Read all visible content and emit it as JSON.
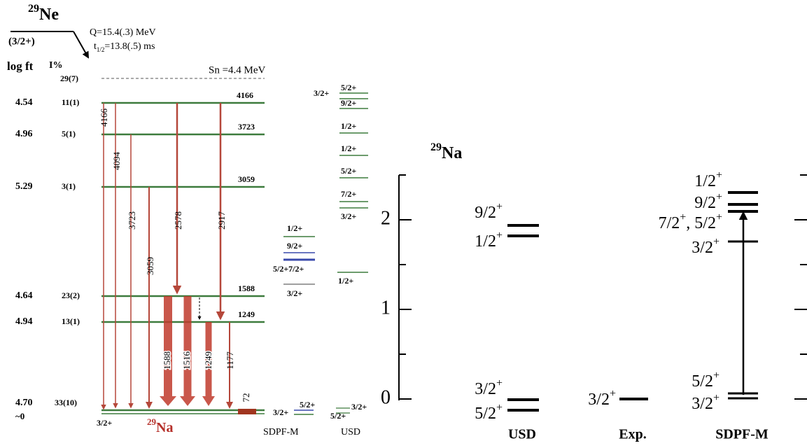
{
  "decay_scheme": {
    "parent": {
      "mass": "29",
      "symbol": "Ne",
      "spin": "(3/2+)",
      "q_value": "Q=15.4(.3) MeV",
      "half_life": {
        "t": "t",
        "sub": "1/2",
        "rest": "=13.8(.5) ms"
      }
    },
    "headers": {
      "log_ft": "log ft",
      "intensity": "I%"
    },
    "neutron_separation": {
      "label": "Sn =4.4 MeV",
      "intensity": "29(7)"
    },
    "levels": [
      {
        "energy": "4166",
        "log_ft": "4.54",
        "intensity": "11(1)"
      },
      {
        "energy": "3723",
        "log_ft": "4.96",
        "intensity": "5(1)"
      },
      {
        "energy": "3059",
        "log_ft": "5.29",
        "intensity": "3(1)"
      },
      {
        "energy": "1588",
        "log_ft": "4.64",
        "intensity": "23(2)"
      },
      {
        "energy": "1249",
        "log_ft": "4.94",
        "intensity": "13(1)"
      }
    ],
    "ground": {
      "energy": "~0",
      "log_ft": "4.70",
      "intensity": "33(10)",
      "spin": "3/2+"
    },
    "transitions": [
      "4166",
      "4094",
      "3723",
      "3059",
      "2578",
      "2917",
      "1588",
      "1516",
      "1249",
      "1177",
      "72"
    ],
    "daughter": {
      "mass": "29",
      "symbol": "Na"
    },
    "sdpfm": {
      "label": "SDPF-M",
      "levels": [
        "1/2+",
        "9/2+",
        "5/2+7/2+",
        "3/2+"
      ],
      "ground": [
        "3/2+",
        "5/2+"
      ]
    },
    "usd": {
      "label": "USD",
      "top_left": "3/2+",
      "levels": [
        "5/2+",
        "9/2+",
        "1/2+",
        "1/2+",
        "5/2+",
        "7/2+",
        "3/2+",
        "1/2+"
      ],
      "ground": [
        "5/2+",
        "3/2+"
      ]
    }
  },
  "comparison": {
    "nucleus": {
      "mass": "29",
      "symbol": "Na"
    },
    "axis_ticks": [
      "0",
      "1",
      "2"
    ],
    "usd": {
      "label": "USD",
      "levels": [
        {
          "j": "9/2",
          "p": "+"
        },
        {
          "j": "1/2",
          "p": "+"
        },
        {
          "j": "3/2",
          "p": "+"
        },
        {
          "j": "5/2",
          "p": "+"
        }
      ]
    },
    "exp": {
      "label": "Exp.",
      "levels": [
        {
          "j": "3/2",
          "p": "+"
        }
      ]
    },
    "sdpfm": {
      "label": "SDPF-M",
      "levels": [
        {
          "j": "1/2",
          "p": "+"
        },
        {
          "j": "9/2",
          "p": "+"
        },
        {
          "j": "7/2",
          "p": "+",
          "j2": ", 5/2",
          "p2": "+"
        },
        {
          "j": "3/2",
          "p": "+"
        },
        {
          "j": "5/2",
          "p": "+"
        },
        {
          "j": "3/2",
          "p": "+"
        }
      ]
    }
  }
}
